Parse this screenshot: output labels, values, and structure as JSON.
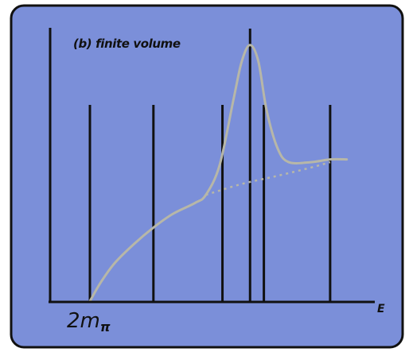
{
  "panel": {
    "title": "(b) finite volume",
    "background": "#7b8fd9",
    "border": "#111111"
  },
  "axes": {
    "x_label": "E",
    "origin_label_main": "2m",
    "origin_label_sub": "π"
  },
  "chart_data": {
    "type": "line",
    "title": "(b) finite volume",
    "xlabel": "E",
    "ylabel": "",
    "line_color": "#b7b7a8",
    "finite_volume_levels": [
      {
        "x": 0.0,
        "height": 0.72
      },
      {
        "x": 0.23,
        "height": 0.72
      },
      {
        "x": 0.48,
        "height": 0.72
      },
      {
        "x": 0.58,
        "height": 1.0
      },
      {
        "x": 0.63,
        "height": 0.72
      },
      {
        "x": 0.87,
        "height": 0.72
      }
    ],
    "resonance_curve": [
      [
        0.0,
        0.0
      ],
      [
        0.04,
        0.07
      ],
      [
        0.09,
        0.14
      ],
      [
        0.16,
        0.21
      ],
      [
        0.23,
        0.27
      ],
      [
        0.3,
        0.32
      ],
      [
        0.38,
        0.36
      ],
      [
        0.42,
        0.39
      ],
      [
        0.47,
        0.5
      ],
      [
        0.52,
        0.74
      ],
      [
        0.55,
        0.88
      ],
      [
        0.58,
        0.94
      ],
      [
        0.61,
        0.88
      ],
      [
        0.64,
        0.7
      ],
      [
        0.68,
        0.56
      ],
      [
        0.72,
        0.51
      ],
      [
        0.8,
        0.51
      ],
      [
        0.87,
        0.52
      ],
      [
        0.93,
        0.52
      ]
    ],
    "background_continuum_dotted": [
      [
        0.42,
        0.39
      ],
      [
        0.55,
        0.43
      ],
      [
        0.68,
        0.46
      ],
      [
        0.8,
        0.49
      ],
      [
        0.87,
        0.51
      ]
    ]
  }
}
